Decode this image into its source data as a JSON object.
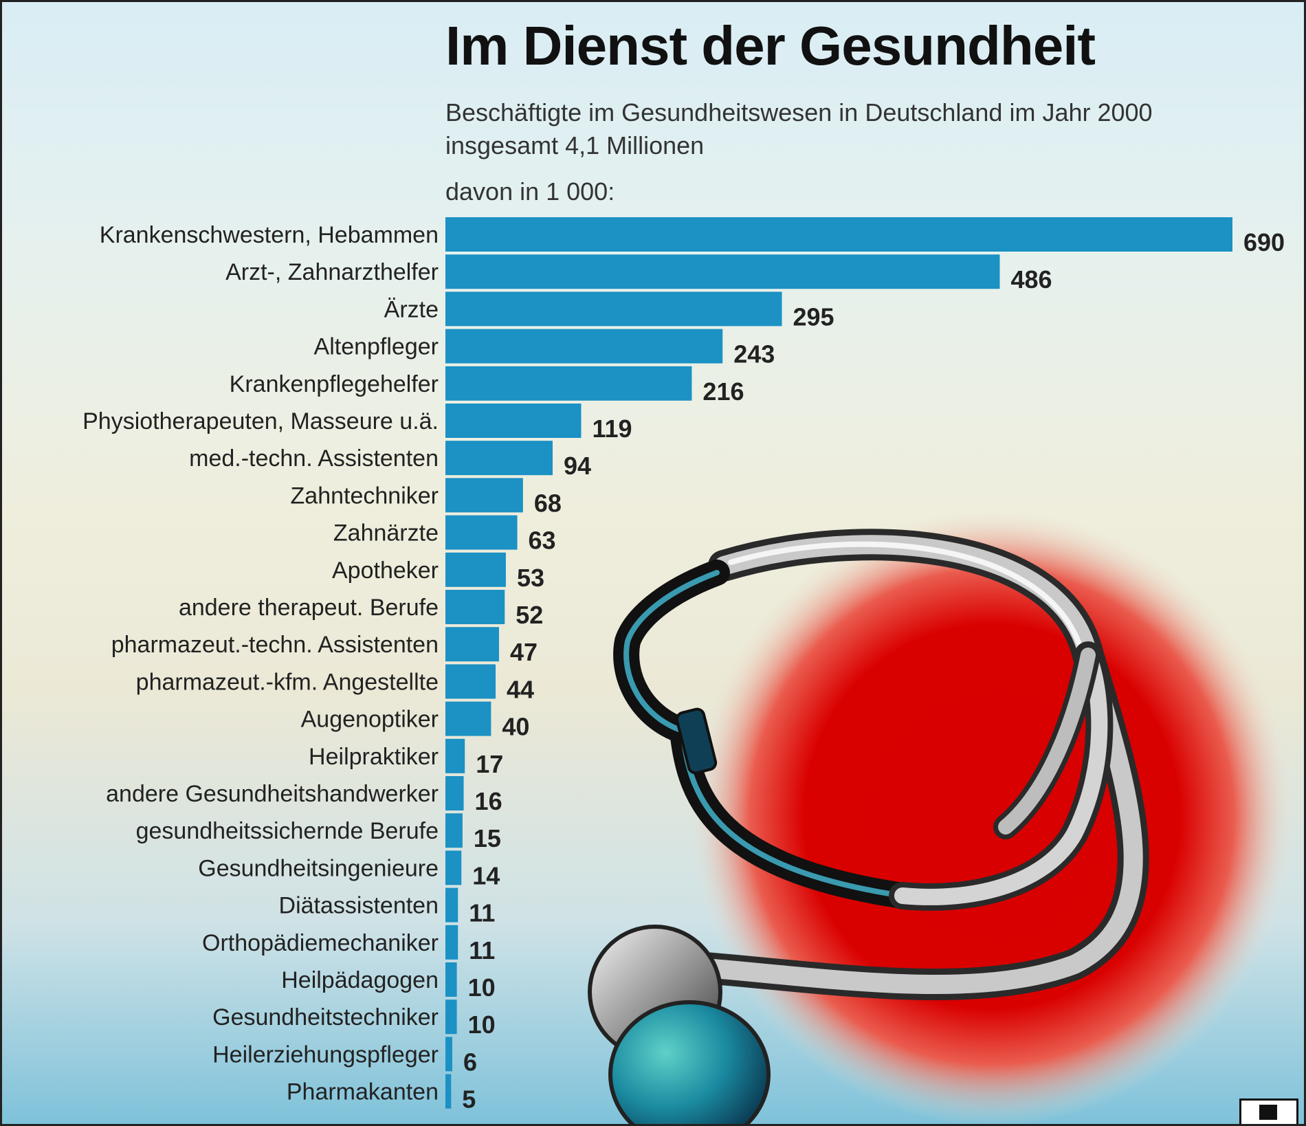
{
  "header": {
    "title": "Im Dienst der Gesundheit",
    "subtitle": "Beschäftigte im Gesundheitswesen in Deutschland im Jahr 2000",
    "total": "insgesamt 4,1 Millionen",
    "unit_note": "davon in 1 000:"
  },
  "colors": {
    "bar": "#1b91c4",
    "circle_red": "#d90000",
    "background_top": "#d9edf5",
    "background_bottom": "#7fc2da"
  },
  "decoration": {
    "icon": "stethoscope-icon"
  },
  "chart_data": {
    "type": "bar",
    "orientation": "horizontal",
    "title": "Im Dienst der Gesundheit",
    "subtitle": "Beschäftigte im Gesundheitswesen in Deutschland im Jahr 2000",
    "xlabel": "",
    "ylabel": "",
    "grid": false,
    "categories": [
      "Krankenschwestern, Hebammen",
      "Arzt-, Zahnarzthelfer",
      "Ärzte",
      "Altenpfleger",
      "Krankenpflegehelfer",
      "Physiotherapeuten, Masseure u.ä.",
      "med.-techn. Assistenten",
      "Zahntechniker",
      "Zahnärzte",
      "Apotheker",
      "andere therapeut. Berufe",
      "pharmazeut.-techn. Assistenten",
      "pharmazeut.-kfm. Angestellte",
      "Augenoptiker",
      "Heilpraktiker",
      "andere Gesundheitshandwerker",
      "gesundheitssichernde Berufe",
      "Gesundheitsingenieure",
      "Diätassistenten",
      "Orthopädiemechaniker",
      "Heilpädagogen",
      "Gesundheitstechniker",
      "Heilerziehungspfleger",
      "Pharmakanten"
    ],
    "values": [
      690,
      486,
      295,
      243,
      216,
      119,
      94,
      68,
      63,
      53,
      52,
      47,
      44,
      40,
      17,
      16,
      15,
      14,
      11,
      11,
      10,
      10,
      6,
      5
    ],
    "value_labels": [
      "690",
      "486",
      "295",
      "243",
      "216",
      "119",
      "94",
      "68",
      "63",
      "53",
      "52",
      "47",
      "44",
      "40",
      "17",
      "16",
      "15",
      "14",
      "11",
      "11",
      "10",
      "10",
      "6",
      "5"
    ],
    "xlim": [
      0,
      690
    ]
  }
}
